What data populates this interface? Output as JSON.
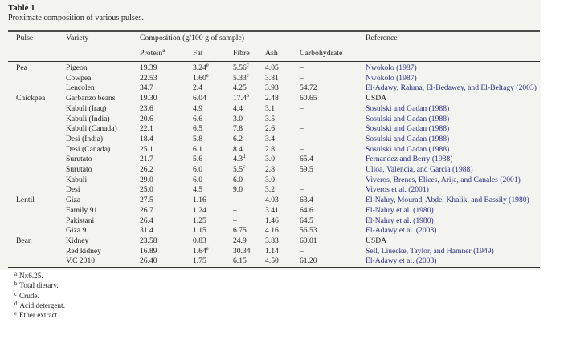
{
  "caption": {
    "label": "Table 1",
    "description": "Proximate composition of various pulses."
  },
  "table": {
    "columns": {
      "pulse": "Pulse",
      "variety": "Variety",
      "composition_group": "Composition (g/100 g of sample)",
      "protein": "Protein",
      "protein_sup": "a",
      "fat": "Fat",
      "fibre": "Fibre",
      "ash": "Ash",
      "carbohydrate": "Carbohydrate",
      "reference": "Reference"
    },
    "rows": [
      {
        "pulse": "Pea",
        "variety": "Pigeon",
        "protein": "19.39",
        "fat": "3.24",
        "fat_sup": "e",
        "fibre": "5.56",
        "fibre_sup": "c",
        "ash": "4.05",
        "carbohydrate": "–",
        "reference": "Nwokolo (1987)",
        "reference_is_link": true
      },
      {
        "pulse": "",
        "variety": "Cowpea",
        "protein": "22.53",
        "fat": "1.60",
        "fat_sup": "e",
        "fibre": "5.33",
        "fibre_sup": "c",
        "ash": "3.81",
        "carbohydrate": "–",
        "reference": "Nwokolo (1987)",
        "reference_is_link": true
      },
      {
        "pulse": "",
        "variety": "Lencolen",
        "protein": "34.7",
        "fat": "2.4",
        "fibre": "4.25",
        "ash": "3.93",
        "carbohydrate": "54.72",
        "reference": "El-Adawy, Rahma, El-Bedawey, and El-Beltagy (2003)",
        "reference_is_link": true
      },
      {
        "pulse": "Chickpea",
        "variety": "Garbanzo beans",
        "protein": "19.30",
        "fat": "6.04",
        "fibre": "17.4",
        "fibre_sup": "b",
        "ash": "2.48",
        "carbohydrate": "60.65",
        "reference": "USDA",
        "reference_is_link": false
      },
      {
        "pulse": "",
        "variety": "Kabuli (Iraq)",
        "protein": "23.6",
        "fat": "4.9",
        "fibre": "4.4",
        "ash": "3.1",
        "carbohydrate": "–",
        "reference": "Sosulski and Gadan (1988)",
        "reference_is_link": true
      },
      {
        "pulse": "",
        "variety": "Kabuli (India)",
        "protein": "20.6",
        "fat": "6.6",
        "fibre": "3.0",
        "ash": "3.5",
        "carbohydrate": "–",
        "reference": "Sosulski and Gadan (1988)",
        "reference_is_link": true
      },
      {
        "pulse": "",
        "variety": "Kabuli (Canada)",
        "protein": "22.1",
        "fat": "6.5",
        "fibre": "7.8",
        "ash": "2.6",
        "carbohydrate": "–",
        "reference": "Sosulski and Gadan (1988)",
        "reference_is_link": true
      },
      {
        "pulse": "",
        "variety": "Desi (India)",
        "protein": "18.4",
        "fat": "5.8",
        "fibre": "6.2",
        "ash": "3.4",
        "carbohydrate": "–",
        "reference": "Sosulski and Gadan (1988)",
        "reference_is_link": true
      },
      {
        "pulse": "",
        "variety": "Desi (Canada)",
        "protein": "25.1",
        "fat": "6.1",
        "fibre": "8.4",
        "ash": "2.8",
        "carbohydrate": "–",
        "reference": "Sosulski and Gadan (1988)",
        "reference_is_link": true
      },
      {
        "pulse": "",
        "variety": "Surutato",
        "protein": "21.7",
        "fat": "5.6",
        "fibre": "4.3",
        "fibre_sup": "d",
        "ash": "3.0",
        "carbohydrate": "65.4",
        "reference": "Fernandez and Berry (1988)",
        "reference_is_link": true
      },
      {
        "pulse": "",
        "variety": "Surutato",
        "protein": "26.2",
        "fat": "6.0",
        "fibre": "5.5",
        "fibre_sup": "c",
        "ash": "2.8",
        "carbohydrate": "59.5",
        "reference": "Ulloa, Valencia, and Garcia (1988)",
        "reference_is_link": true
      },
      {
        "pulse": "",
        "variety": "Kabuli",
        "protein": "29.0",
        "fat": "6.0",
        "fibre": "6.0",
        "ash": "3.0",
        "carbohydrate": "–",
        "reference": "Viveros, Brenes, Elices, Arija, and Canales (2001)",
        "reference_is_link": true
      },
      {
        "pulse": "",
        "variety": "Desi",
        "protein": "25.0",
        "fat": "4.5",
        "fibre": "9.0",
        "ash": "3.2",
        "carbohydrate": "–",
        "reference": "Viveros et al. (2001)",
        "reference_is_link": true
      },
      {
        "pulse": "Lentil",
        "variety": "Giza",
        "protein": "27.5",
        "fat": "1.16",
        "fibre": "–",
        "ash": "4.03",
        "carbohydrate": "63.4",
        "reference": "El-Nahry, Mourad, Abdel Khalik, and Bassily (1980)",
        "reference_is_link": true
      },
      {
        "pulse": "",
        "variety": "Family 91",
        "protein": "26.7",
        "fat": "1.24",
        "fibre": "–",
        "ash": "3.41",
        "carbohydrate": "64.6",
        "reference": "El-Nahry et al. (1980)",
        "reference_is_link": true
      },
      {
        "pulse": "",
        "variety": "Pakistani",
        "protein": "26.4",
        "fat": "1.25",
        "fibre": "–",
        "ash": "1.46",
        "carbohydrate": "64.5",
        "reference": "El-Nahry et al. (1980)",
        "reference_is_link": true
      },
      {
        "pulse": "",
        "variety": "Giza 9",
        "protein": "31.4",
        "fat": "1.15",
        "fibre": "6.75",
        "ash": "4.16",
        "carbohydrate": "56.53",
        "reference": "El-Adawy et al. (2003)",
        "reference_is_link": true
      },
      {
        "pulse": "Bean",
        "variety": "Kidney",
        "protein": "23.58",
        "fat": "0.83",
        "fibre": "24.9",
        "ash": "3.83",
        "carbohydrate": "60.01",
        "reference": "USDA",
        "reference_is_link": false
      },
      {
        "pulse": "",
        "variety": "Red kidney",
        "protein": "16.89",
        "fat": "1.64",
        "fat_sup": "e",
        "fibre": "30.34",
        "ash": "1.14",
        "carbohydrate": "–",
        "reference": "Sell, Liuecke, Taylor, and Hamner (1949)",
        "reference_is_link": true
      },
      {
        "pulse": "",
        "variety": "V.C 2010",
        "protein": "26.40",
        "fat": "1.75",
        "fibre": "6.15",
        "ash": "4.50",
        "carbohydrate": "61.20",
        "reference": "El-Adawy et al. (2003)",
        "reference_is_link": true
      }
    ]
  },
  "footnotes": [
    {
      "sup": "a",
      "text": "Nx6.25."
    },
    {
      "sup": "b",
      "text": "Total dietary."
    },
    {
      "sup": "c",
      "text": "Crude."
    },
    {
      "sup": "d",
      "text": "Acid detergent."
    },
    {
      "sup": "e",
      "text": "Ether extract."
    }
  ],
  "colors": {
    "reference_link": "#2d2d87",
    "body_text": "#22211f",
    "rule": "#303030",
    "panel_background": "#f3f3ef"
  }
}
